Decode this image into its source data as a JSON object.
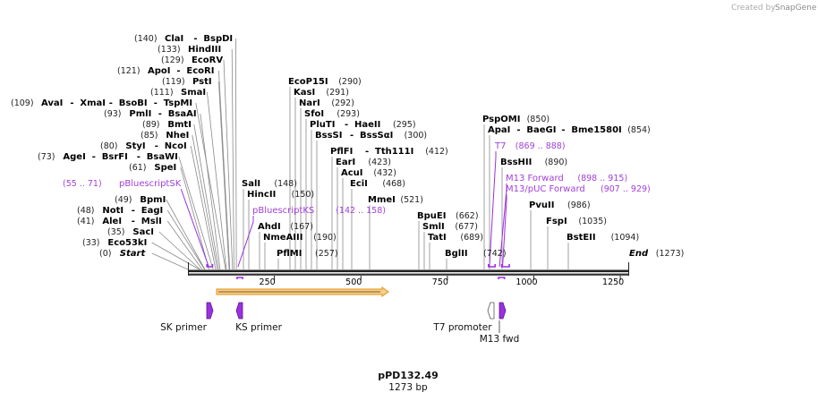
{
  "watermark": {
    "prefix": "Created by",
    "brand": "SnapGene"
  },
  "plasmid": {
    "name": "pPD132.49",
    "length_label": "1273 bp",
    "length": 1273
  },
  "scale": {
    "ticks": [
      250,
      500,
      750,
      1000,
      1250
    ]
  },
  "sites": [
    {
      "bp": 140,
      "text": "(140)",
      "names": [
        "ClaI",
        "BspDI"
      ]
    },
    {
      "bp": 133,
      "text": "(133)",
      "names": [
        "HindIII"
      ]
    },
    {
      "bp": 129,
      "text": "(129)",
      "names": [
        "EcoRV"
      ]
    },
    {
      "bp": 121,
      "text": "(121)",
      "names": [
        "ApoI",
        "EcoRI"
      ]
    },
    {
      "bp": 119,
      "text": "(119)",
      "names": [
        "PstI"
      ]
    },
    {
      "bp": 111,
      "text": "(111)",
      "names": [
        "SmaI"
      ]
    },
    {
      "bp": 109,
      "text": "(109)",
      "names": [
        "AvaI",
        "XmaI",
        "BsoBI",
        "TspMI"
      ]
    },
    {
      "bp": 93,
      "text": "(93)",
      "names": [
        "PmlI",
        "BsaAI"
      ]
    },
    {
      "bp": 89,
      "text": "(89)",
      "names": [
        "BmtI"
      ]
    },
    {
      "bp": 85,
      "text": "(85)",
      "names": [
        "NheI"
      ]
    },
    {
      "bp": 80,
      "text": "(80)",
      "names": [
        "StyI",
        "NcoI"
      ]
    },
    {
      "bp": 73,
      "text": "(73)",
      "names": [
        "AgeI",
        "BsrFI",
        "BsaWI"
      ]
    },
    {
      "bp": 61,
      "text": "(61)",
      "names": [
        "SpeI"
      ]
    },
    {
      "bp": 49,
      "text": "(49)",
      "names": [
        "BpmI"
      ]
    },
    {
      "bp": 48,
      "text": "(48)",
      "names": [
        "NotI",
        "EagI"
      ]
    },
    {
      "bp": 41,
      "text": "(41)",
      "names": [
        "AleI",
        "MslI"
      ]
    },
    {
      "bp": 35,
      "text": "(35)",
      "names": [
        "SacI"
      ]
    },
    {
      "bp": 33,
      "text": "(33)",
      "names": [
        "Eco53kI"
      ]
    },
    {
      "bp": 0,
      "text": "(0)",
      "names": [
        "Start"
      ],
      "italic": true
    },
    {
      "bp": 148,
      "text": "(148)",
      "names": [
        "SalI"
      ]
    },
    {
      "bp": 150,
      "text": "(150)",
      "names": [
        "HincII"
      ]
    },
    {
      "bp": 167,
      "text": "(167)",
      "names": [
        "AhdI"
      ]
    },
    {
      "bp": 190,
      "text": "(190)",
      "names": [
        "NmeAIII"
      ]
    },
    {
      "bp": 257,
      "text": "(257)",
      "names": [
        "PflMI"
      ]
    },
    {
      "bp": 290,
      "text": "(290)",
      "names": [
        "EcoP15I"
      ]
    },
    {
      "bp": 291,
      "text": "(291)",
      "names": [
        "KasI"
      ]
    },
    {
      "bp": 292,
      "text": "(292)",
      "names": [
        "NarI"
      ]
    },
    {
      "bp": 293,
      "text": "(293)",
      "names": [
        "SfoI"
      ]
    },
    {
      "bp": 295,
      "text": "(295)",
      "names": [
        "PluTI",
        "HaeII"
      ]
    },
    {
      "bp": 300,
      "text": "(300)",
      "names": [
        "BssSI",
        "BssSαI"
      ]
    },
    {
      "bp": 412,
      "text": "(412)",
      "names": [
        "PflFI",
        "Tth111I"
      ]
    },
    {
      "bp": 423,
      "text": "(423)",
      "names": [
        "EarI"
      ]
    },
    {
      "bp": 432,
      "text": "(432)",
      "names": [
        "AcuI"
      ]
    },
    {
      "bp": 468,
      "text": "(468)",
      "names": [
        "EciI"
      ]
    },
    {
      "bp": 521,
      "text": "(521)",
      "names": [
        "MmeI"
      ]
    },
    {
      "bp": 662,
      "text": "(662)",
      "names": [
        "BpuEI"
      ]
    },
    {
      "bp": 677,
      "text": "(677)",
      "names": [
        "SmlI"
      ]
    },
    {
      "bp": 689,
      "text": "(689)",
      "names": [
        "TatI"
      ]
    },
    {
      "bp": 742,
      "text": "(742)",
      "names": [
        "BglII"
      ]
    },
    {
      "bp": 850,
      "text": "(850)",
      "names": [
        "PspOMI"
      ]
    },
    {
      "bp": 854,
      "text": "(854)",
      "names": [
        "ApaI",
        "BaeGI",
        "Bme1580I"
      ]
    },
    {
      "bp": 890,
      "text": "(890)",
      "names": [
        "BssHII"
      ]
    },
    {
      "bp": 986,
      "text": "(986)",
      "names": [
        "PvuII"
      ]
    },
    {
      "bp": 1035,
      "text": "(1035)",
      "names": [
        "FspI"
      ]
    },
    {
      "bp": 1094,
      "text": "(1094)",
      "names": [
        "BstEII"
      ]
    },
    {
      "bp": 1273,
      "text": "(1273)",
      "names": [
        "End"
      ],
      "italic": true
    }
  ],
  "primer_sites": [
    {
      "name": "pBluescriptSK",
      "range": "(55 .. 71)",
      "start": 55,
      "end": 71
    },
    {
      "name": "pBluescriptKS",
      "range": "(142 .. 158)",
      "start": 142,
      "end": 158
    },
    {
      "name": "T7",
      "range": "(869 .. 888)",
      "start": 869,
      "end": 888
    },
    {
      "name": "M13 Forward",
      "range": "(898 .. 915)",
      "start": 898,
      "end": 915
    },
    {
      "name": "M13/pUC Forward",
      "range": "(907 .. 929)",
      "start": 907,
      "end": 929
    }
  ],
  "features": [
    {
      "name": "SK primer",
      "bp": 63
    },
    {
      "name": "KS primer",
      "bp": 150
    },
    {
      "name": "T7 promoter",
      "bp": 878
    },
    {
      "name": "M13 fwd",
      "bp": 906
    }
  ],
  "colors": {
    "primer": "#9b30e0",
    "bar_fill": "#f2cf8e",
    "bar_edge": "#e7a23a",
    "line": "#222222"
  }
}
